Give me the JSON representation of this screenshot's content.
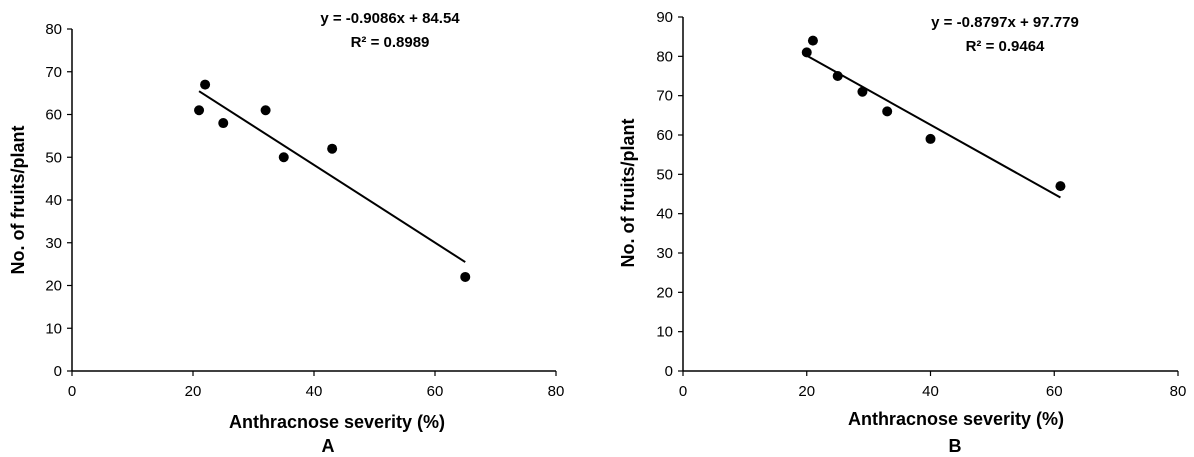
{
  "chart_data": [
    {
      "type": "scatter",
      "panel_label": "A",
      "xlabel": "Anthracnose  severity (%)",
      "ylabel": "No. of fruits/plant",
      "xlim": [
        0,
        80
      ],
      "ylim": [
        0,
        80
      ],
      "xticks": [
        0,
        20,
        40,
        60,
        80
      ],
      "yticks": [
        0,
        10,
        20,
        30,
        40,
        50,
        60,
        70,
        80
      ],
      "grid": false,
      "points": [
        {
          "x": 21,
          "y": 61
        },
        {
          "x": 22,
          "y": 67
        },
        {
          "x": 25,
          "y": 58
        },
        {
          "x": 32,
          "y": 61
        },
        {
          "x": 35,
          "y": 50
        },
        {
          "x": 43,
          "y": 52
        },
        {
          "x": 65,
          "y": 22
        }
      ],
      "trendline": {
        "slope": -0.9086,
        "intercept": 84.54,
        "x_range": [
          21,
          65
        ]
      },
      "equation": "y = -0.9086x + 84.54",
      "r_squared": "R² = 0.8989"
    },
    {
      "type": "scatter",
      "panel_label": "B",
      "xlabel": "Anthracnose  severity (%)",
      "ylabel": "No. of fruits/plant",
      "xlim": [
        0,
        80
      ],
      "ylim": [
        0,
        90
      ],
      "xticks": [
        0,
        20,
        40,
        60,
        80
      ],
      "yticks": [
        0,
        10,
        20,
        30,
        40,
        50,
        60,
        70,
        80,
        90
      ],
      "grid": false,
      "points": [
        {
          "x": 20,
          "y": 81
        },
        {
          "x": 21,
          "y": 84
        },
        {
          "x": 25,
          "y": 75
        },
        {
          "x": 29,
          "y": 71
        },
        {
          "x": 33,
          "y": 66
        },
        {
          "x": 40,
          "y": 59
        },
        {
          "x": 61,
          "y": 47
        }
      ],
      "trendline": {
        "slope": -0.8797,
        "intercept": 97.779,
        "x_range": [
          20,
          61
        ]
      },
      "equation": "y = -0.8797x + 97.779",
      "r_squared": "R² = 0.9464"
    }
  ]
}
